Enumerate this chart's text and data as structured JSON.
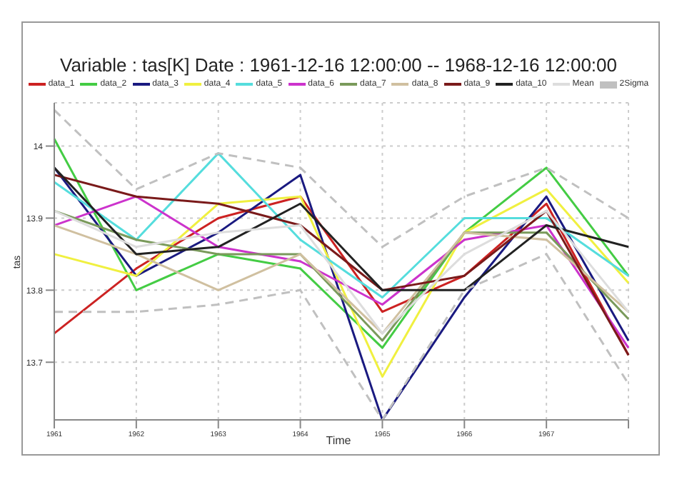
{
  "chart_data": {
    "type": "line",
    "title": "Variable : tas[K]  Date :  1961-12-16 12:00:00 -- 1968-12-16 12:00:00",
    "xlabel": "Time",
    "ylabel": "tas",
    "categories": [
      "1961",
      "1962",
      "1963",
      "1964",
      "1965",
      "1966",
      "1967",
      null
    ],
    "ylim": [
      13.62,
      14.06
    ],
    "yticks": [
      13.7,
      13.8,
      13.9,
      14
    ],
    "grid": true,
    "legend": "top",
    "marker": "none",
    "line_style": "solid",
    "series": [
      {
        "name": "data_1",
        "color": "#cc2222",
        "values": [
          13.74,
          13.83,
          13.9,
          13.93,
          13.77,
          13.82,
          13.92,
          13.71
        ]
      },
      {
        "name": "data_2",
        "color": "#44cc44",
        "values": [
          14.01,
          13.8,
          13.85,
          13.83,
          13.72,
          13.88,
          13.97,
          13.82
        ]
      },
      {
        "name": "data_3",
        "color": "#1a1a80",
        "values": [
          13.97,
          13.82,
          13.88,
          13.96,
          13.62,
          13.79,
          13.93,
          13.73
        ]
      },
      {
        "name": "data_4",
        "color": "#f0f040",
        "values": [
          13.85,
          13.82,
          13.92,
          13.93,
          13.68,
          13.88,
          13.94,
          13.81
        ]
      },
      {
        "name": "data_5",
        "color": "#55dddd",
        "values": [
          13.95,
          13.87,
          13.99,
          13.87,
          13.79,
          13.9,
          13.9,
          13.82
        ]
      },
      {
        "name": "data_6",
        "color": "#cc33cc",
        "values": [
          13.89,
          13.93,
          13.86,
          13.84,
          13.78,
          13.87,
          13.89,
          13.72
        ]
      },
      {
        "name": "data_7",
        "color": "#7a9a5b",
        "values": [
          13.91,
          13.87,
          13.85,
          13.85,
          13.73,
          13.88,
          13.88,
          13.76
        ]
      },
      {
        "name": "data_8",
        "color": "#d0c0a0",
        "values": [
          13.89,
          13.85,
          13.8,
          13.85,
          13.74,
          13.88,
          13.87,
          13.77
        ]
      },
      {
        "name": "data_9",
        "color": "#7a1a1a",
        "values": [
          13.96,
          13.93,
          13.92,
          13.89,
          13.8,
          13.82,
          13.91,
          13.71
        ]
      },
      {
        "name": "data_10",
        "color": "#222222",
        "values": [
          13.97,
          13.85,
          13.86,
          13.92,
          13.8,
          13.8,
          13.89,
          13.86
        ]
      },
      {
        "name": "Mean",
        "color": "#dddddd",
        "values": [
          13.91,
          13.86,
          13.88,
          13.89,
          13.74,
          13.85,
          13.91,
          13.77
        ]
      },
      {
        "name": "2Sigma",
        "color": "#c0c0c0",
        "line_style": "dashed",
        "values": [
          14.05,
          13.94,
          13.99,
          13.97,
          13.86,
          13.93,
          13.97,
          13.9
        ]
      },
      {
        "color": "#c0c0c0",
        "line_style": "dashed",
        "values": [
          13.77,
          13.77,
          13.78,
          13.8,
          13.62,
          13.8,
          13.85,
          13.67
        ]
      }
    ]
  }
}
